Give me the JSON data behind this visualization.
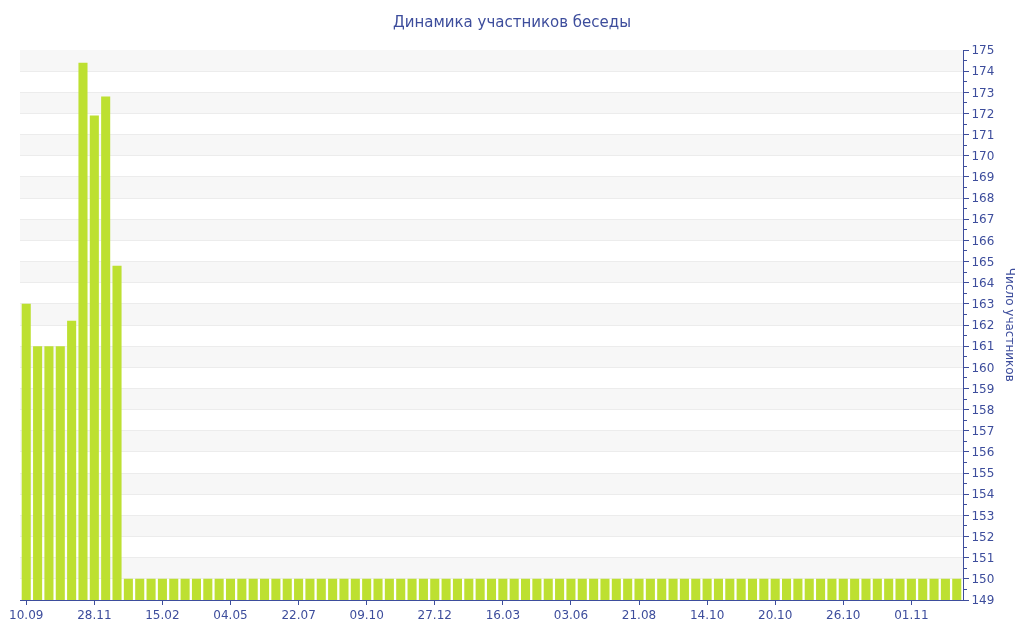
{
  "chart_data": {
    "type": "bar",
    "title": "Динамика участников беседы",
    "ylabel": "Число участников",
    "categories": [
      "10.09",
      null,
      null,
      null,
      null,
      null,
      "28.11",
      null,
      null,
      null,
      null,
      null,
      "15.02",
      null,
      null,
      null,
      null,
      null,
      "04.05",
      null,
      null,
      null,
      null,
      null,
      "22.07",
      null,
      null,
      null,
      null,
      null,
      "09.10",
      null,
      null,
      null,
      null,
      null,
      "27.12",
      null,
      null,
      null,
      null,
      null,
      "16.03",
      null,
      null,
      null,
      null,
      null,
      "03.06",
      null,
      null,
      null,
      null,
      null,
      "21.08",
      null,
      null,
      null,
      null,
      null,
      "14.10",
      null,
      null,
      null,
      null,
      null,
      "20.10",
      null,
      null,
      null,
      null,
      null,
      "26.10",
      null,
      null,
      null,
      null,
      null,
      "01.11",
      null,
      null,
      null,
      null
    ],
    "values": [
      163,
      161,
      161,
      161,
      162.2,
      174.4,
      171.9,
      172.8,
      164.8,
      150,
      150,
      150,
      150,
      150,
      150,
      150,
      150,
      150,
      150,
      150,
      150,
      150,
      150,
      150,
      150,
      150,
      150,
      150,
      150,
      150,
      150,
      150,
      150,
      150,
      150,
      150,
      150,
      150,
      150,
      150,
      150,
      150,
      150,
      150,
      150,
      150,
      150,
      150,
      150,
      150,
      150,
      150,
      150,
      150,
      150,
      150,
      150,
      150,
      150,
      150,
      150,
      150,
      150,
      150,
      150,
      150,
      150,
      150,
      150,
      150,
      150,
      150,
      150,
      150,
      150,
      150,
      150,
      150,
      150,
      150,
      150,
      150,
      150
    ],
    "color": "#bde031",
    "ylim": [
      149,
      175
    ],
    "yticks": [
      149,
      150,
      151,
      152,
      153,
      154,
      155,
      156,
      157,
      158,
      159,
      160,
      161,
      162,
      163,
      164,
      165,
      166,
      167,
      168,
      169,
      170,
      171,
      172,
      173,
      174,
      175
    ],
    "grid": "y"
  }
}
